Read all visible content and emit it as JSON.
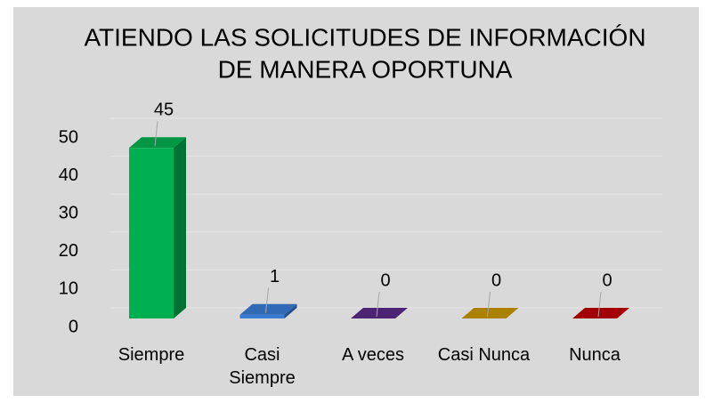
{
  "chart_data": {
    "type": "bar3d",
    "title": [
      "ATIENDO LAS SOLICITUDES DE INFORMACIÓN",
      "DE MANERA OPORTUNA"
    ],
    "categories": [
      "Siempre",
      "Casi Siempre",
      "A veces",
      "Casi Nunca",
      "Nunca"
    ],
    "values": [
      45,
      1,
      0,
      0,
      0
    ],
    "colors": [
      "#00b050",
      "#3a7bd5",
      "#5b2a86",
      "#c89800",
      "#c00000"
    ],
    "ylim": [
      0,
      50
    ],
    "yticks": [
      0,
      10,
      20,
      30,
      40,
      50
    ],
    "grid": true
  }
}
